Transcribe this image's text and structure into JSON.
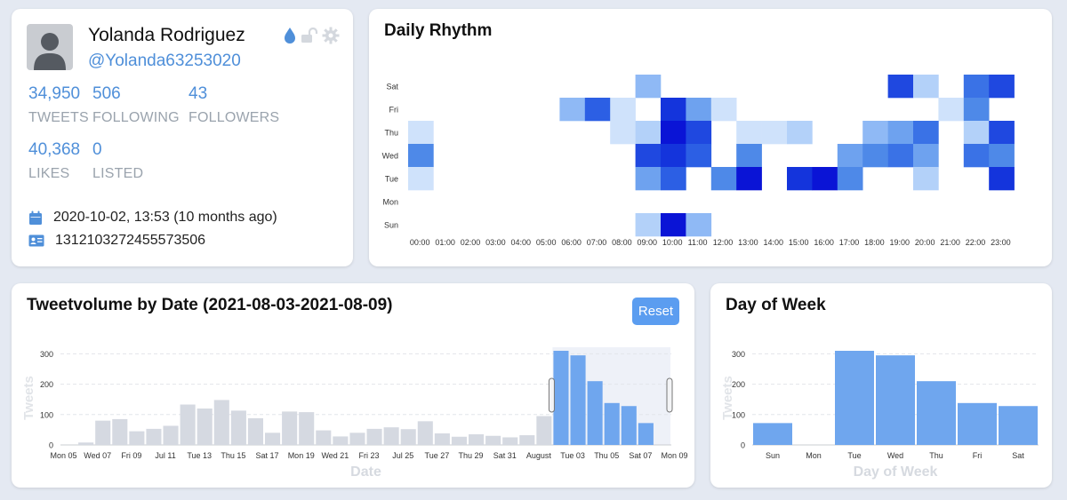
{
  "profile": {
    "name": "Yolanda Rodriguez",
    "handle": "@Yolanda63253020",
    "stats": [
      {
        "value": "34,950",
        "label": "TWEETS"
      },
      {
        "value": "506",
        "label": "FOLLOWING"
      },
      {
        "value": "43",
        "label": "FOLLOWERS"
      },
      {
        "value": "40,368",
        "label": "LIKES"
      },
      {
        "value": "0",
        "label": "LISTED"
      }
    ],
    "created": "2020-10-02, 13:53 (10 months ago)",
    "user_id": "1312103272455573506",
    "icons": [
      "drop-icon",
      "unlock-icon",
      "gear-icon"
    ],
    "accent": "#4f8fd9"
  },
  "rhythm": {
    "title": "Daily Rhythm",
    "days": [
      "Sat",
      "Fri",
      "Thu",
      "Wed",
      "Tue",
      "Mon",
      "Sun"
    ],
    "hours": [
      "00:00",
      "01:00",
      "02:00",
      "03:00",
      "04:00",
      "05:00",
      "06:00",
      "07:00",
      "08:00",
      "09:00",
      "10:00",
      "11:00",
      "12:00",
      "13:00",
      "14:00",
      "15:00",
      "16:00",
      "17:00",
      "18:00",
      "19:00",
      "20:00",
      "21:00",
      "22:00",
      "23:00"
    ],
    "matrix": [
      [
        0,
        0,
        0,
        0,
        0,
        0,
        0,
        0,
        0,
        3,
        0,
        0,
        0,
        0,
        0,
        0,
        0,
        0,
        0,
        8,
        2,
        0,
        6,
        8
      ],
      [
        0,
        0,
        0,
        0,
        0,
        0,
        3,
        7,
        1,
        0,
        9,
        4,
        1,
        0,
        0,
        0,
        0,
        0,
        0,
        0,
        0,
        1,
        5,
        0
      ],
      [
        1,
        0,
        0,
        0,
        0,
        0,
        0,
        0,
        1,
        2,
        10,
        8,
        0,
        1,
        1,
        2,
        0,
        0,
        3,
        4,
        6,
        0,
        2,
        8
      ],
      [
        5,
        0,
        0,
        0,
        0,
        0,
        0,
        0,
        0,
        8,
        9,
        7,
        0,
        5,
        0,
        0,
        0,
        4,
        5,
        6,
        4,
        0,
        6,
        5
      ],
      [
        1,
        0,
        0,
        0,
        0,
        0,
        0,
        0,
        0,
        4,
        7,
        0,
        5,
        10,
        0,
        9,
        10,
        5,
        0,
        0,
        2,
        0,
        0,
        9
      ],
      [
        0,
        0,
        0,
        0,
        0,
        0,
        0,
        0,
        0,
        0,
        0,
        0,
        0,
        0,
        0,
        0,
        0,
        0,
        0,
        0,
        0,
        0,
        0,
        0
      ],
      [
        0,
        0,
        0,
        0,
        0,
        0,
        0,
        0,
        0,
        2,
        10,
        3,
        0,
        0,
        0,
        0,
        0,
        0,
        0,
        0,
        0,
        0,
        0,
        0
      ]
    ]
  },
  "volume": {
    "title": "Tweetvolume by Date (2021-08-03-2021-08-09)",
    "reset_label": "Reset"
  },
  "dow": {
    "title": "Day of Week"
  },
  "chart_data": [
    {
      "type": "bar",
      "title": "Tweetvolume by Date (2021-08-03-2021-08-09)",
      "xlabel": "Date",
      "ylabel": "Tweets",
      "ylim": [
        0,
        310
      ],
      "yticks": [
        0,
        100,
        200,
        300
      ],
      "tick_labels": [
        "Mon 05",
        "Wed 07",
        "Fri 09",
        "Jul 11",
        "Tue 13",
        "Thu 15",
        "Sat 17",
        "Mon 19",
        "Wed 21",
        "Fri 23",
        "Jul 25",
        "Tue 27",
        "Thu 29",
        "Sat 31",
        "August",
        "Tue 03",
        "Thu 05",
        "Sat 07",
        "Mon 09"
      ],
      "categories": [
        "Jul 05",
        "Jul 06",
        "Jul 07",
        "Jul 08",
        "Jul 09",
        "Jul 10",
        "Jul 11",
        "Jul 12",
        "Jul 13",
        "Jul 14",
        "Jul 15",
        "Jul 16",
        "Jul 17",
        "Jul 18",
        "Jul 19",
        "Jul 20",
        "Jul 21",
        "Jul 22",
        "Jul 23",
        "Jul 24",
        "Jul 25",
        "Jul 26",
        "Jul 27",
        "Jul 28",
        "Jul 29",
        "Jul 30",
        "Jul 31",
        "Aug 01",
        "Aug 02",
        "Aug 03",
        "Aug 04",
        "Aug 05",
        "Aug 06",
        "Aug 07",
        "Aug 08",
        "Aug 09"
      ],
      "values": [
        0,
        8,
        80,
        85,
        45,
        53,
        63,
        133,
        120,
        148,
        113,
        88,
        40,
        110,
        108,
        48,
        28,
        40,
        53,
        58,
        52,
        78,
        38,
        27,
        35,
        30,
        25,
        32,
        95,
        310,
        295,
        210,
        138,
        128,
        72,
        0
      ],
      "selected_range": [
        "2021-08-03",
        "2021-08-09"
      ],
      "colors": {
        "selected": "#6fa6ee",
        "unselected": "#d5d9e1"
      },
      "grid": "horizontal dashed"
    },
    {
      "type": "bar",
      "title": "Day of Week",
      "xlabel": "Day of Week",
      "ylabel": "Tweets",
      "ylim": [
        0,
        310
      ],
      "yticks": [
        0,
        100,
        200,
        300
      ],
      "categories": [
        "Sun",
        "Mon",
        "Tue",
        "Wed",
        "Thu",
        "Fri",
        "Sat"
      ],
      "values": [
        72,
        0,
        310,
        295,
        210,
        138,
        128
      ],
      "color": "#6fa6ee",
      "grid": "horizontal dashed"
    }
  ]
}
